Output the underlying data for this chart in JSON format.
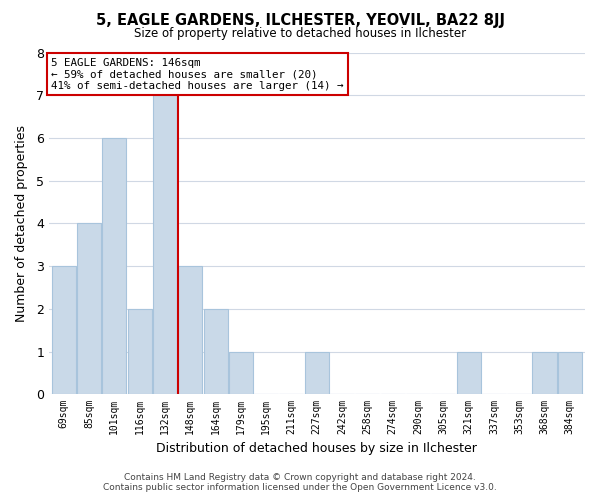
{
  "title": "5, EAGLE GARDENS, ILCHESTER, YEOVIL, BA22 8JJ",
  "subtitle": "Size of property relative to detached houses in Ilchester",
  "xlabel": "Distribution of detached houses by size in Ilchester",
  "ylabel": "Number of detached properties",
  "bar_labels": [
    "69sqm",
    "85sqm",
    "101sqm",
    "116sqm",
    "132sqm",
    "148sqm",
    "164sqm",
    "179sqm",
    "195sqm",
    "211sqm",
    "227sqm",
    "242sqm",
    "258sqm",
    "274sqm",
    "290sqm",
    "305sqm",
    "321sqm",
    "337sqm",
    "353sqm",
    "368sqm",
    "384sqm"
  ],
  "bar_values": [
    3,
    4,
    6,
    2,
    7,
    3,
    2,
    1,
    0,
    0,
    1,
    0,
    0,
    0,
    0,
    0,
    1,
    0,
    0,
    1,
    1
  ],
  "bar_color": "#c9d9e8",
  "bar_edge_color": "#a8c4dc",
  "highlight_bar_index": 4,
  "highlight_line_color": "#cc0000",
  "ylim": [
    0,
    8
  ],
  "yticks": [
    0,
    1,
    2,
    3,
    4,
    5,
    6,
    7,
    8
  ],
  "annotation_title": "5 EAGLE GARDENS: 146sqm",
  "annotation_line1": "← 59% of detached houses are smaller (20)",
  "annotation_line2": "41% of semi-detached houses are larger (14) →",
  "annotation_box_color": "#ffffff",
  "annotation_box_edge": "#cc0000",
  "footer_line1": "Contains HM Land Registry data © Crown copyright and database right 2024.",
  "footer_line2": "Contains public sector information licensed under the Open Government Licence v3.0.",
  "background_color": "#ffffff",
  "grid_color": "#d0d8e4"
}
